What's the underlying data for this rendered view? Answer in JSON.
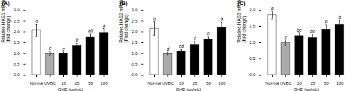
{
  "chart_data": [
    {
      "type": "bar",
      "title": "(A)",
      "ylabel": "Relative HAS1 mRNA level\n(fold change)",
      "xlabel": "OHE (μg/mL)",
      "categories": [
        "Normal",
        "UVBC",
        "10",
        "25",
        "50",
        "100"
      ],
      "values": [
        2.07,
        1.0,
        1.0,
        1.35,
        1.75,
        1.95
      ],
      "errors": [
        0.28,
        0.08,
        0.07,
        0.12,
        0.15,
        0.2
      ],
      "letters": [
        "a",
        "c",
        "c",
        "b",
        "ab",
        "a"
      ],
      "colors": [
        "white",
        "#aaaaaa",
        "black",
        "black",
        "black",
        "black"
      ],
      "ylim": [
        0,
        3.0
      ],
      "yticks": [
        {
          "value": 0,
          "label": "0.0"
        },
        0.5,
        {
          "value": 1,
          "label": "1.0"
        },
        1.5,
        {
          "value": 2,
          "label": "2.0"
        },
        2.5,
        {
          "value": 3,
          "label": "3.0"
        }
      ]
    },
    {
      "type": "bar",
      "title": "(B)",
      "ylabel": "Relative HAS2 mRNA level\n(Fold change)",
      "xlabel": "OHE (μg/mL)",
      "categories": [
        "Normal",
        "UVBC",
        "10",
        "25",
        "50",
        "100"
      ],
      "values": [
        2.15,
        1.0,
        1.1,
        1.4,
        1.65,
        2.2
      ],
      "errors": [
        0.32,
        0.06,
        0.08,
        0.15,
        0.12,
        0.25
      ],
      "letters": [
        "a",
        "d",
        "cd",
        "c",
        "b",
        "a"
      ],
      "colors": [
        "white",
        "#aaaaaa",
        "black",
        "black",
        "black",
        "black"
      ],
      "ylim": [
        0,
        3.0
      ],
      "yticks": [
        {
          "value": 0,
          "label": "0.0"
        },
        0.5,
        {
          "value": 1,
          "label": "1.0"
        },
        1.5,
        {
          "value": 2,
          "label": "2.0"
        },
        2.5,
        {
          "value": 3,
          "label": "3.0"
        }
      ]
    },
    {
      "type": "bar",
      "title": "(C)",
      "ylabel": "Relative HAS3 mRNA level\n(fold change)",
      "xlabel": "OHE (μg/mL)",
      "categories": [
        "Normal",
        "UVBC",
        "10",
        "25",
        "50",
        "100"
      ],
      "values": [
        1.85,
        1.0,
        1.2,
        1.15,
        1.4,
        1.55
      ],
      "errors": [
        0.12,
        0.08,
        0.1,
        0.1,
        0.15,
        0.14
      ],
      "letters": [
        "a",
        "c",
        "bc",
        "bc",
        "b",
        "b"
      ],
      "colors": [
        "white",
        "#aaaaaa",
        "black",
        "black",
        "black",
        "black"
      ],
      "ylim": [
        0,
        2.0
      ],
      "yticks": [
        {
          "value": 0,
          "label": "0.0"
        },
        0.5,
        {
          "value": 1,
          "label": "1.0"
        },
        1.5,
        {
          "value": 2,
          "label": "2.0"
        }
      ]
    }
  ]
}
